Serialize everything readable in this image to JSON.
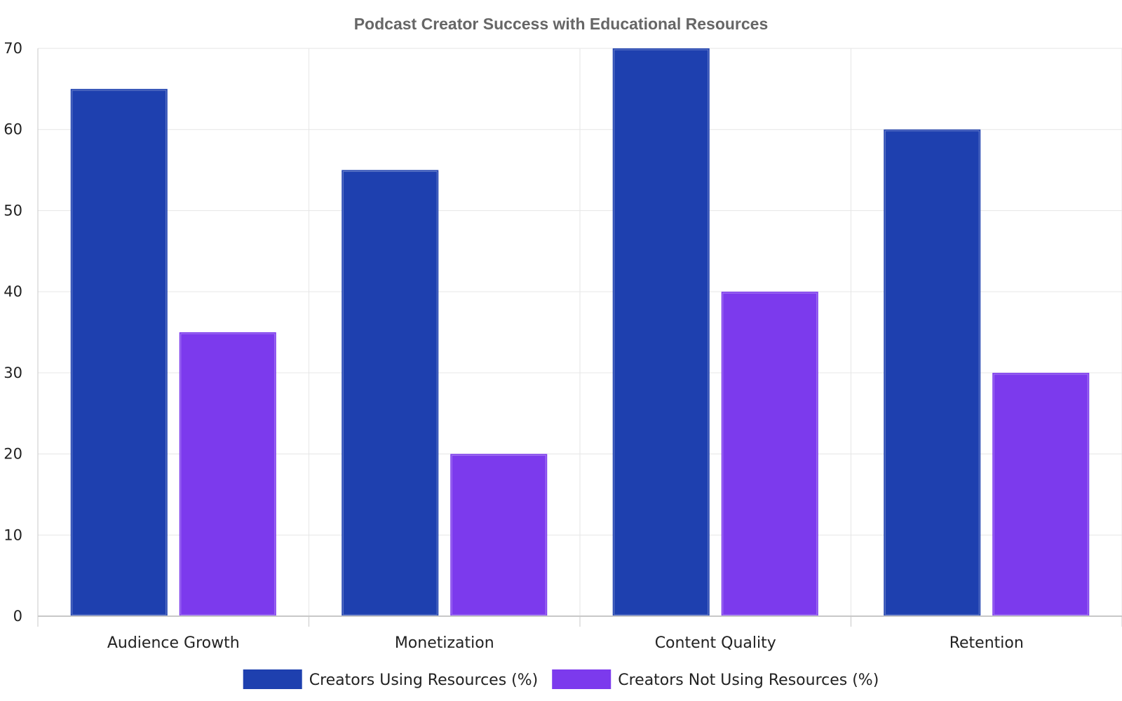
{
  "chart_data": {
    "type": "bar",
    "title": "Podcast Creator Success with Educational Resources",
    "xlabel": "",
    "ylabel": "",
    "categories": [
      "Audience Growth",
      "Monetization",
      "Content Quality",
      "Retention"
    ],
    "series": [
      {
        "name": "Creators Using Resources (%)",
        "values": [
          65,
          55,
          70,
          60
        ],
        "color": "#1e40af"
      },
      {
        "name": "Creators Not Using Resources (%)",
        "values": [
          35,
          20,
          40,
          30
        ],
        "color": "#7c3aed"
      }
    ],
    "ylim": [
      0,
      70
    ],
    "yticks": [
      0,
      10,
      20,
      30,
      40,
      50,
      60,
      70
    ],
    "grid": true,
    "legend_position": "bottom-center"
  }
}
